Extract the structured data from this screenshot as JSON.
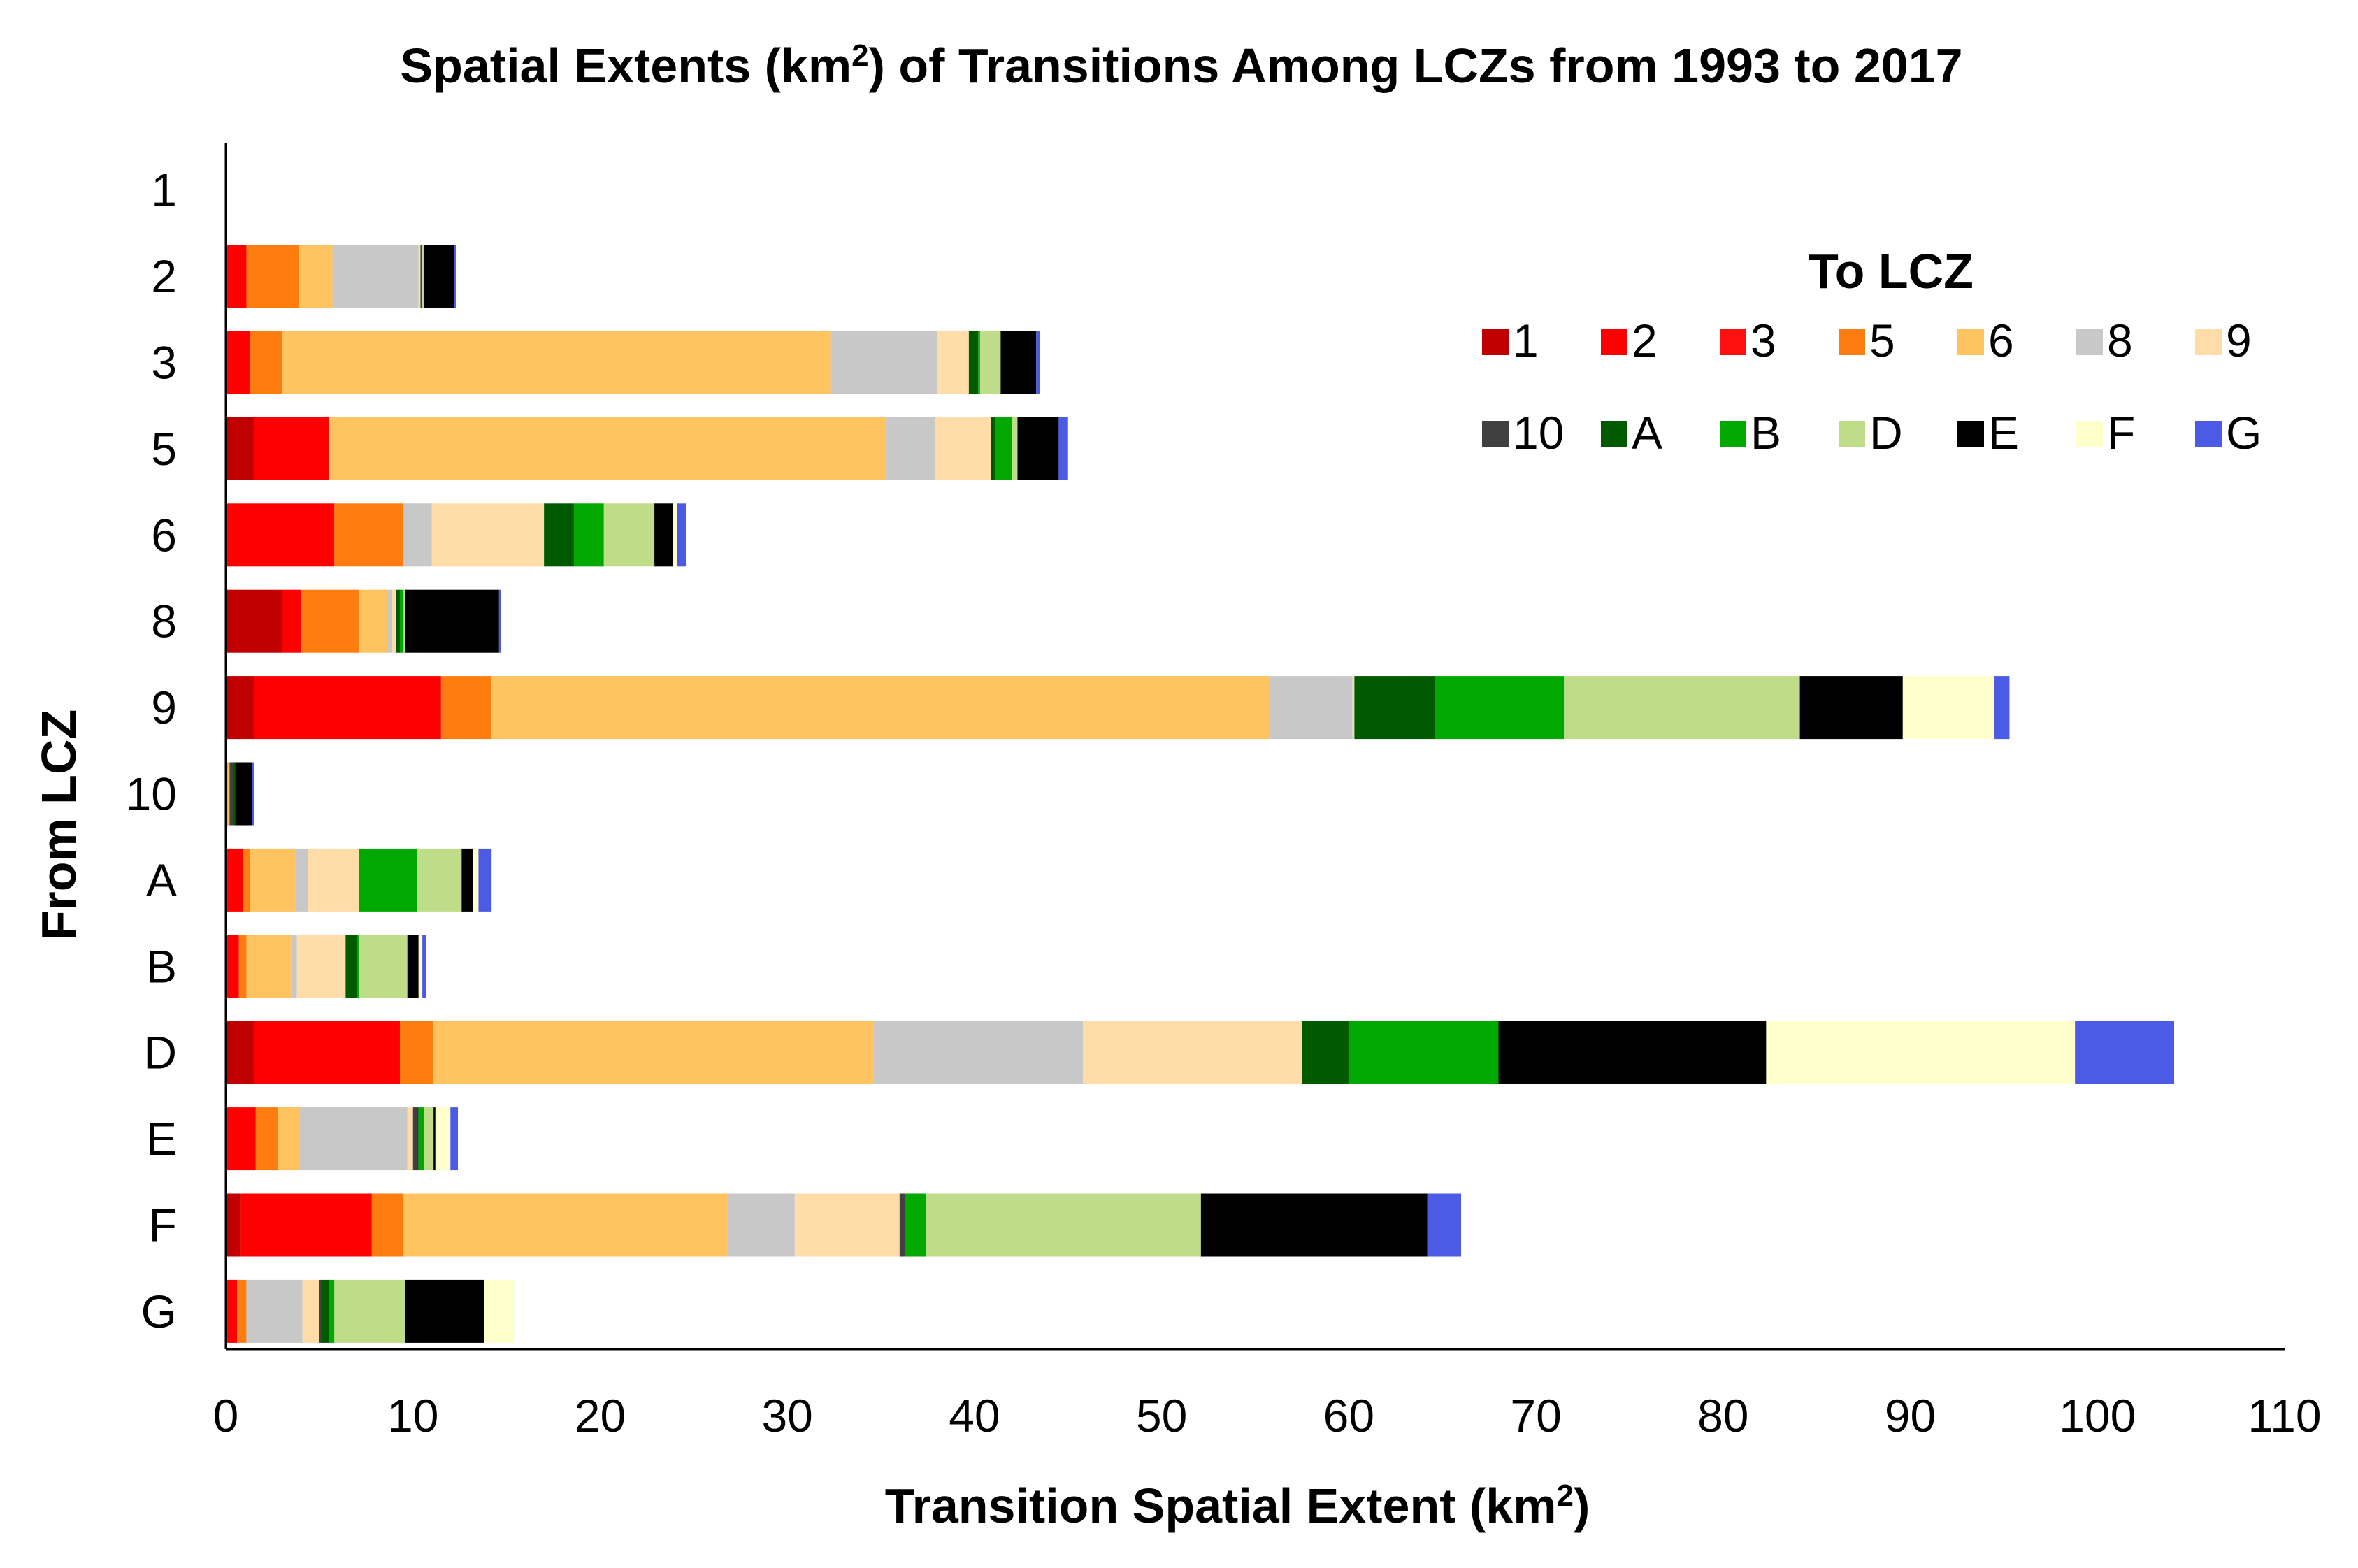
{
  "chart_data": {
    "type": "bar",
    "orientation": "horizontal",
    "stacked": true,
    "title": "Spatial Extents (km2) of Transitions Among LCZs from 1993 to 2017",
    "title_parts": {
      "before": "Spatial Extents (km",
      "sup": "2",
      "after": ") of Transitions Among LCZs from 1993 to 2017"
    },
    "xlabel": "Transition Spatial Extent (km2)",
    "xlabel_parts": {
      "before": "Transition Spatial Extent (km",
      "sup": "2",
      "after": ")"
    },
    "ylabel": "From LCZ",
    "xlim": [
      0,
      110
    ],
    "xticks": [
      0,
      10,
      20,
      30,
      40,
      50,
      60,
      70,
      80,
      90,
      100,
      110
    ],
    "grid": false,
    "legend_title": "To LCZ",
    "legend_position": "top-right",
    "categories": [
      "1",
      "2",
      "3",
      "5",
      "6",
      "8",
      "9",
      "10",
      "A",
      "B",
      "D",
      "E",
      "F",
      "G"
    ],
    "series": [
      {
        "name": "1",
        "color": "#c00000",
        "values": [
          0,
          0.1,
          0.1,
          1.5,
          0.1,
          3.0,
          1.5,
          0,
          0.1,
          0.1,
          1.5,
          0.1,
          0.8,
          0.1
        ]
      },
      {
        "name": "2",
        "color": "#ff0000",
        "values": [
          0,
          1.0,
          1.2,
          4.0,
          5.7,
          1.0,
          10.0,
          0,
          0.8,
          0.6,
          7.8,
          1.5,
          7.0,
          0.5
        ]
      },
      {
        "name": "3",
        "color": "#ff1010",
        "values": [
          0,
          0,
          0,
          0,
          0,
          0,
          0,
          0,
          0,
          0,
          0,
          0,
          0,
          0
        ]
      },
      {
        "name": "5",
        "color": "#ff7c0e",
        "values": [
          0,
          2.8,
          1.7,
          0,
          3.7,
          3.1,
          2.7,
          0.1,
          0.4,
          0.4,
          1.8,
          1.2,
          1.7,
          0.5
        ]
      },
      {
        "name": "6",
        "color": "#ffc35f",
        "values": [
          0,
          1.8,
          29.3,
          29.8,
          0,
          1.5,
          41.6,
          0.1,
          2.4,
          2.4,
          23.5,
          1.1,
          17.3,
          0
        ]
      },
      {
        "name": "8",
        "color": "#c8c8c8",
        "values": [
          0,
          4.6,
          5.7,
          2.6,
          1.5,
          0.3,
          4.4,
          0,
          0.7,
          0.3,
          11.2,
          5.8,
          3.6,
          3.0
        ]
      },
      {
        "name": "9",
        "color": "#ffdca8",
        "values": [
          0,
          0.1,
          1.7,
          3.0,
          6.0,
          0.2,
          0.1,
          0,
          2.7,
          2.6,
          11.7,
          0.3,
          5.6,
          0.9
        ]
      },
      {
        "name": "10",
        "color": "#404040",
        "values": [
          0,
          0.1,
          0,
          0,
          0,
          0,
          0,
          0.2,
          0,
          0,
          0,
          0.2,
          0.3,
          0.1
        ]
      },
      {
        "name": "A",
        "color": "#005a00",
        "values": [
          0,
          0,
          0.5,
          0.2,
          1.6,
          0.2,
          4.3,
          0.1,
          0,
          0.6,
          2.5,
          0.1,
          0,
          0.4
        ]
      },
      {
        "name": "B",
        "color": "#00a800",
        "values": [
          0,
          0,
          0.1,
          0.9,
          1.6,
          0.2,
          6.9,
          0,
          3.1,
          0.1,
          8.0,
          0.3,
          1.1,
          0.3
        ]
      },
      {
        "name": "D",
        "color": "#bfdd88",
        "values": [
          0,
          0.1,
          1.1,
          0.3,
          2.7,
          0.1,
          12.6,
          0,
          2.4,
          2.6,
          0,
          0.5,
          14.7,
          3.8
        ]
      },
      {
        "name": "E",
        "color": "#000000",
        "values": [
          0,
          1.6,
          1.9,
          2.2,
          1.0,
          5.0,
          5.5,
          0.9,
          0.6,
          0.6,
          14.3,
          0.1,
          12.1,
          4.2
        ]
      },
      {
        "name": "F",
        "color": "#ffffcc",
        "values": [
          0,
          0,
          0,
          0,
          0.2,
          0,
          4.9,
          0,
          0.3,
          0.2,
          16.5,
          0.8,
          0,
          1.6
        ]
      },
      {
        "name": "G",
        "color": "#4c5be6",
        "values": [
          0,
          0.1,
          0.2,
          0.5,
          0.5,
          0.1,
          0.8,
          0.1,
          0.7,
          0.2,
          5.3,
          0.4,
          1.8,
          0
        ]
      }
    ]
  }
}
